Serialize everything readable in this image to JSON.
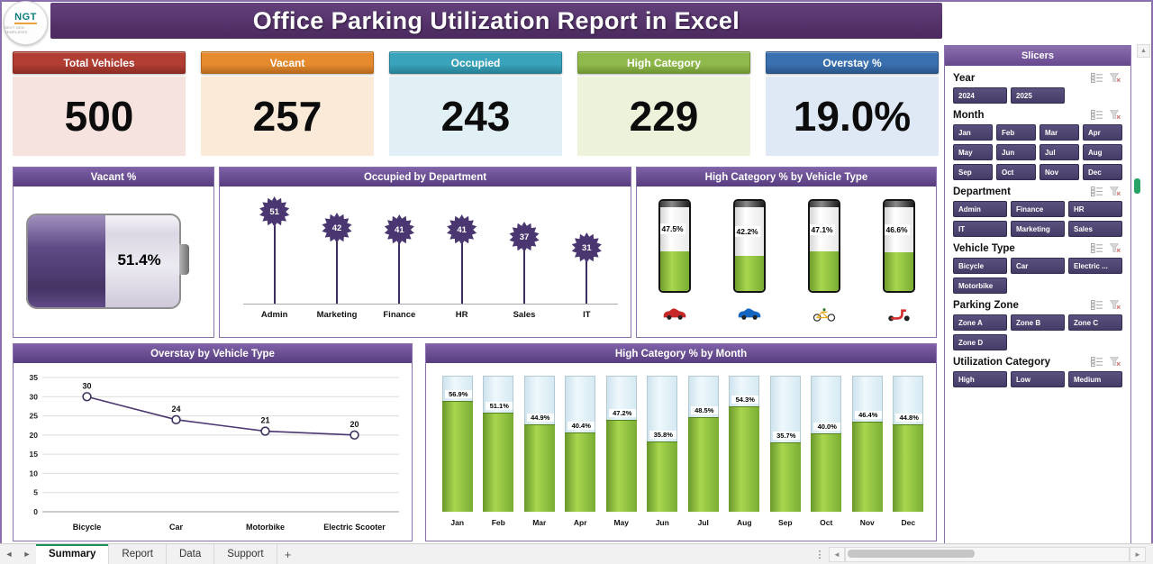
{
  "app": {
    "title": "Office Parking Utilization Report in Excel",
    "logo": {
      "text": "NGT",
      "subtext": "NEXT GEN TEMPLATES"
    },
    "sheet_tabs": [
      "Summary",
      "Report",
      "Data",
      "Support"
    ],
    "active_tab": "Summary"
  },
  "icons": {
    "sheet_nav_prev": "◄",
    "sheet_nav_next": "►",
    "add_sheet": "+",
    "tab_overflow": "⋮",
    "scroll_left": "◄",
    "scroll_right": "►",
    "scroll_up": "▲",
    "slicer_multiselect": "multi-select-checklist",
    "slicer_clear_filter": "funnel-clear"
  },
  "colors": {
    "header_purple": "#5a3f82",
    "gauge_purple": "#4a3768",
    "fill_green": "#8bc043",
    "column_blue": "#ddecf4",
    "line_purple": "#4a3670",
    "selection_handle": "#28a566"
  },
  "kpis": [
    {
      "label": "Total Vehicles",
      "value": "500",
      "header": "#b13d33",
      "border": "#8c2d25",
      "body": "#f6e3e0"
    },
    {
      "label": "Vacant",
      "value": "257",
      "header": "#e68a2e",
      "border": "#b5691d",
      "body": "#fcead8"
    },
    {
      "label": "Occupied",
      "value": "243",
      "header": "#38a3ba",
      "border": "#287f93",
      "body": "#e1f0f4"
    },
    {
      "label": "High Category",
      "value": "229",
      "header": "#8fb94a",
      "border": "#6e9434",
      "body": "#edf3db"
    },
    {
      "label": "Overstay %",
      "value": "19.0%",
      "header": "#3a70b0",
      "border": "#2a5488",
      "body": "#dfe9f6"
    }
  ],
  "slicers": {
    "title": "Slicers",
    "groups": [
      {
        "label": "Year",
        "cols": 3,
        "items": [
          "2024",
          "2025"
        ]
      },
      {
        "label": "Month",
        "cols": 4,
        "items": [
          "Jan",
          "Feb",
          "Mar",
          "Apr",
          "May",
          "Jun",
          "Jul",
          "Aug",
          "Sep",
          "Oct",
          "Nov",
          "Dec"
        ]
      },
      {
        "label": "Department",
        "cols": 3,
        "items": [
          "Admin",
          "Finance",
          "HR",
          "IT",
          "Marketing",
          "Sales"
        ]
      },
      {
        "label": "Vehicle Type",
        "cols": 3,
        "items": [
          "Bicycle",
          "Car",
          "Electric ...",
          "Motorbike"
        ]
      },
      {
        "label": "Parking Zone",
        "cols": 3,
        "items": [
          "Zone A",
          "Zone B",
          "Zone C",
          "Zone D"
        ]
      },
      {
        "label": "Utilization Category",
        "cols": 3,
        "items": [
          "High",
          "Low",
          "Medium"
        ]
      }
    ]
  },
  "chart_data": [
    {
      "type": "gauge",
      "title": "Vacant %",
      "value": 51.4,
      "max": 100,
      "label": "51.4%"
    },
    {
      "type": "lollipop",
      "title": "Occupied by Department",
      "categories": [
        "Admin",
        "Marketing",
        "Finance",
        "HR",
        "Sales",
        "IT"
      ],
      "values": [
        51,
        42,
        41,
        41,
        37,
        31
      ],
      "ylim": [
        0,
        60
      ]
    },
    {
      "type": "column-gauges",
      "title": "High Category % by Vehicle Type",
      "categories": [
        "car-red",
        "car-blue",
        "bicycle",
        "scooter"
      ],
      "values": [
        47.5,
        42.2,
        47.1,
        46.6
      ],
      "labels": [
        "47.5%",
        "42.2%",
        "47.1%",
        "46.6%"
      ],
      "max": 100
    },
    {
      "type": "line",
      "title": "Overstay by Vehicle Type",
      "categories": [
        "Bicycle",
        "Car",
        "Motorbike",
        "Electric Scooter"
      ],
      "values": [
        30,
        24,
        21,
        20
      ],
      "ylim": [
        0,
        35
      ],
      "ytick_step": 5,
      "grid": true
    },
    {
      "type": "bar",
      "title": "High Category % by Month",
      "categories": [
        "Jan",
        "Feb",
        "Mar",
        "Apr",
        "May",
        "Jun",
        "Jul",
        "Aug",
        "Sep",
        "Oct",
        "Nov",
        "Dec"
      ],
      "values": [
        56.9,
        51.1,
        44.9,
        40.4,
        47.2,
        35.8,
        48.5,
        54.3,
        35.7,
        40.0,
        46.4,
        44.8
      ],
      "labels": [
        "56.9%",
        "51.1%",
        "44.9%",
        "40.4%",
        "47.2%",
        "35.8%",
        "48.5%",
        "54.3%",
        "35.7%",
        "40.0%",
        "46.4%",
        "44.8%"
      ],
      "unit": "%",
      "ylim": [
        0,
        70
      ]
    }
  ]
}
